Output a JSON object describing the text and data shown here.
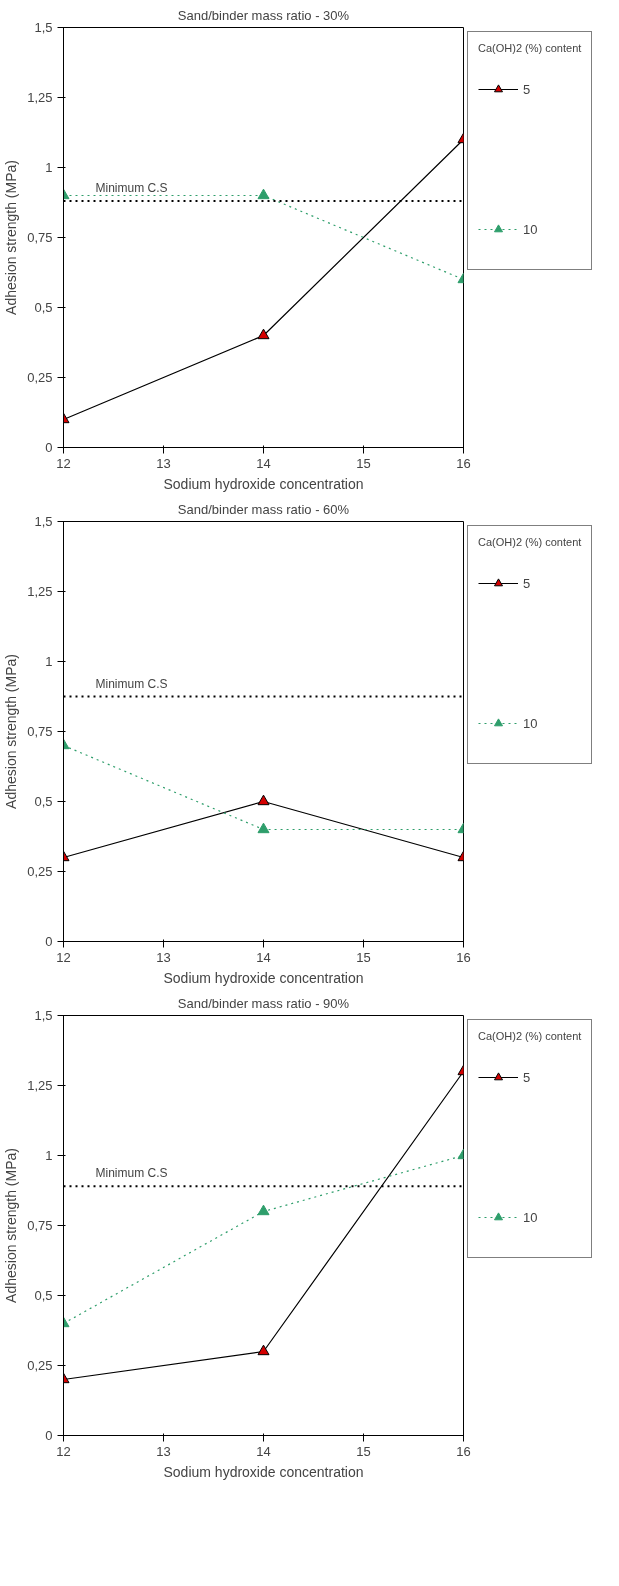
{
  "chart_data": [
    {
      "type": "line",
      "title": "Sand/binder mass ratio - 30%",
      "xlabel": "Sodium hydroxide concentration",
      "ylabel": "Adhesion strength (MPa)",
      "legend_title": "Ca(OH)2 (%) content",
      "legend": "right",
      "grid": false,
      "marker": "triangle",
      "x": [
        12,
        14,
        16
      ],
      "xlim": [
        12,
        16
      ],
      "xticks": [
        12,
        13,
        14,
        15,
        16
      ],
      "ylim": [
        0,
        1.5
      ],
      "yticks": [
        0,
        {
          "value": 0.25,
          "label": "0,25"
        },
        {
          "value": 0.5,
          "label": "0,5"
        },
        {
          "value": 0.75,
          "label": "0,75"
        },
        1,
        {
          "value": 1.25,
          "label": "1,25"
        },
        {
          "value": 1.5,
          "label": "1,5"
        }
      ],
      "series": [
        {
          "name": "5",
          "color": "#d40000",
          "line_style": "solid",
          "values": [
            0.1,
            0.4,
            1.1
          ]
        },
        {
          "name": "10",
          "color": "#2e9e6b",
          "line_style": "dotted",
          "values": [
            0.9,
            0.9,
            0.6
          ]
        }
      ],
      "ref_lines": [
        {
          "axis": "y",
          "value": 0.88,
          "label": "Minimum C.S",
          "color": "#000000",
          "line_style": "dotted"
        }
      ]
    },
    {
      "type": "line",
      "title": "Sand/binder mass ratio - 60%",
      "xlabel": "Sodium hydroxide concentration",
      "ylabel": "Adhesion strength (MPa)",
      "legend_title": "Ca(OH)2 (%) content",
      "legend": "right",
      "grid": false,
      "marker": "triangle",
      "x": [
        12,
        14,
        16
      ],
      "xlim": [
        12,
        16
      ],
      "xticks": [
        12,
        13,
        14,
        15,
        16
      ],
      "ylim": [
        0,
        1.5
      ],
      "yticks": [
        0,
        {
          "value": 0.25,
          "label": "0,25"
        },
        {
          "value": 0.5,
          "label": "0,5"
        },
        {
          "value": 0.75,
          "label": "0,75"
        },
        1,
        {
          "value": 1.25,
          "label": "1,25"
        },
        {
          "value": 1.5,
          "label": "1,5"
        }
      ],
      "series": [
        {
          "name": "5",
          "color": "#d40000",
          "line_style": "solid",
          "values": [
            0.3,
            0.5,
            0.3
          ]
        },
        {
          "name": "10",
          "color": "#2e9e6b",
          "line_style": "dotted",
          "values": [
            0.7,
            0.4,
            0.4
          ]
        }
      ],
      "ref_lines": [
        {
          "axis": "y",
          "value": 0.875,
          "label": "Minimum C.S",
          "color": "#000000",
          "line_style": "dotted"
        }
      ]
    },
    {
      "type": "line",
      "title": "Sand/binder mass ratio - 90%",
      "xlabel": "Sodium hydroxide concentration",
      "ylabel": "Adhesion strength (MPa)",
      "legend_title": "Ca(OH)2 (%) content",
      "legend": "right",
      "grid": false,
      "marker": "triangle",
      "x": [
        12,
        14,
        16
      ],
      "xlim": [
        12,
        16
      ],
      "xticks": [
        12,
        13,
        14,
        15,
        16
      ],
      "ylim": [
        0,
        1.5
      ],
      "yticks": [
        0,
        {
          "value": 0.25,
          "label": "0,25"
        },
        {
          "value": 0.5,
          "label": "0,5"
        },
        {
          "value": 0.75,
          "label": "0,75"
        },
        1,
        {
          "value": 1.25,
          "label": "1,25"
        },
        {
          "value": 1.5,
          "label": "1,5"
        }
      ],
      "series": [
        {
          "name": "5",
          "color": "#d40000",
          "line_style": "solid",
          "values": [
            0.2,
            0.3,
            1.3
          ]
        },
        {
          "name": "10",
          "color": "#2e9e6b",
          "line_style": "dotted",
          "values": [
            0.4,
            0.8,
            1.0
          ]
        }
      ],
      "ref_lines": [
        {
          "axis": "y",
          "value": 0.89,
          "label": "Minimum C.S",
          "color": "#000000",
          "line_style": "dotted"
        }
      ]
    }
  ]
}
